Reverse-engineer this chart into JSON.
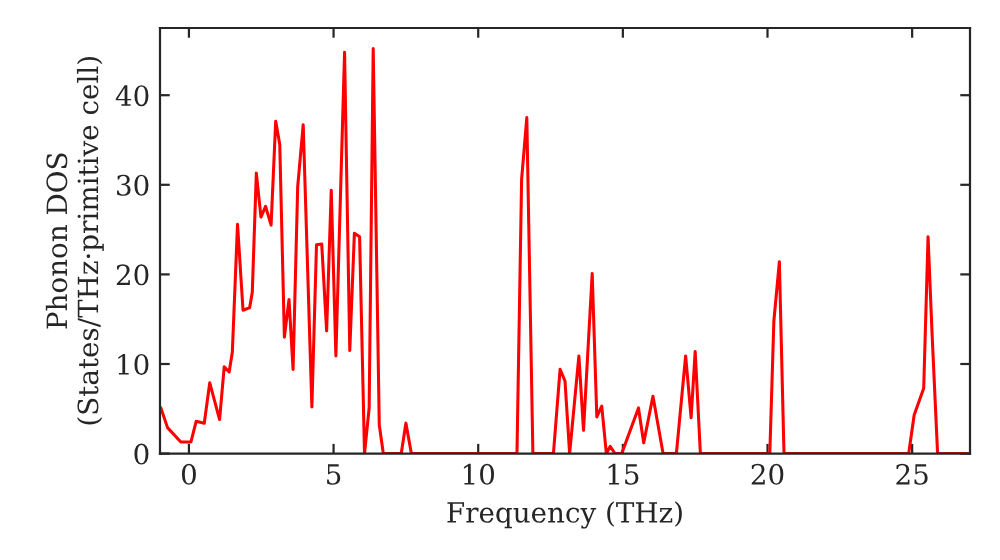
{
  "chart_data": {
    "type": "line",
    "xlabel": "Frequency (THz)",
    "ylabel": "Phonon DOS\n(States/THz·primitive cell)",
    "xlim": [
      -1,
      27
    ],
    "ylim": [
      0,
      47.5
    ],
    "xticks": [
      0,
      5,
      10,
      15,
      20,
      25
    ],
    "yticks": [
      0,
      10,
      20,
      30,
      40
    ],
    "grid": false,
    "legend": false,
    "marker": "none",
    "line_style": "solid",
    "series": [
      {
        "color": "#ff0000",
        "x": [
          -0.97,
          -0.74,
          -0.28,
          0.07,
          0.25,
          0.53,
          0.72,
          1.06,
          1.22,
          1.39,
          1.5,
          1.68,
          1.87,
          2.1,
          2.19,
          2.33,
          2.49,
          2.65,
          2.84,
          3.0,
          3.14,
          3.3,
          3.46,
          3.6,
          3.76,
          3.95,
          4.25,
          4.41,
          4.59,
          4.76,
          4.92,
          5.08,
          5.38,
          5.56,
          5.72,
          5.9,
          6.07,
          6.23,
          6.37,
          6.58,
          6.72,
          7.34,
          7.5,
          7.69,
          11.34,
          11.5,
          11.68,
          11.89,
          12.6,
          12.83,
          13.0,
          13.16,
          13.48,
          13.64,
          13.94,
          14.1,
          14.27,
          14.43,
          14.56,
          14.73,
          14.96,
          15.54,
          15.72,
          16.04,
          16.39,
          16.85,
          17.17,
          17.36,
          17.5,
          17.68,
          20.08,
          20.22,
          20.41,
          20.57,
          24.88,
          25.07,
          25.4,
          25.55,
          25.69,
          25.88,
          27
        ],
        "values": [
          5.1,
          2.9,
          1.3,
          1.3,
          3.6,
          3.4,
          7.9,
          3.8,
          9.7,
          9.1,
          11.3,
          25.6,
          16.0,
          16.3,
          18,
          31.3,
          26.4,
          27.6,
          25.5,
          37.1,
          34.5,
          13.0,
          17.2,
          9.4,
          29.8,
          36.7,
          5.2,
          23.3,
          23.4,
          13.7,
          29.4,
          10.9,
          44.8,
          11.5,
          24.6,
          24.2,
          0,
          5.1,
          45.2,
          3.2,
          0,
          0,
          3.4,
          0,
          0,
          30.6,
          37.5,
          0,
          0,
          9.4,
          8.1,
          0,
          10.9,
          2.6,
          20.1,
          4.1,
          5.3,
          0,
          0.8,
          0,
          0,
          5.1,
          1.2,
          6.4,
          0,
          0,
          10.9,
          4.0,
          11.4,
          0,
          0,
          14.8,
          21.4,
          0,
          0,
          4.3,
          7.3,
          24.2,
          13.3,
          0,
          0
        ]
      }
    ]
  }
}
